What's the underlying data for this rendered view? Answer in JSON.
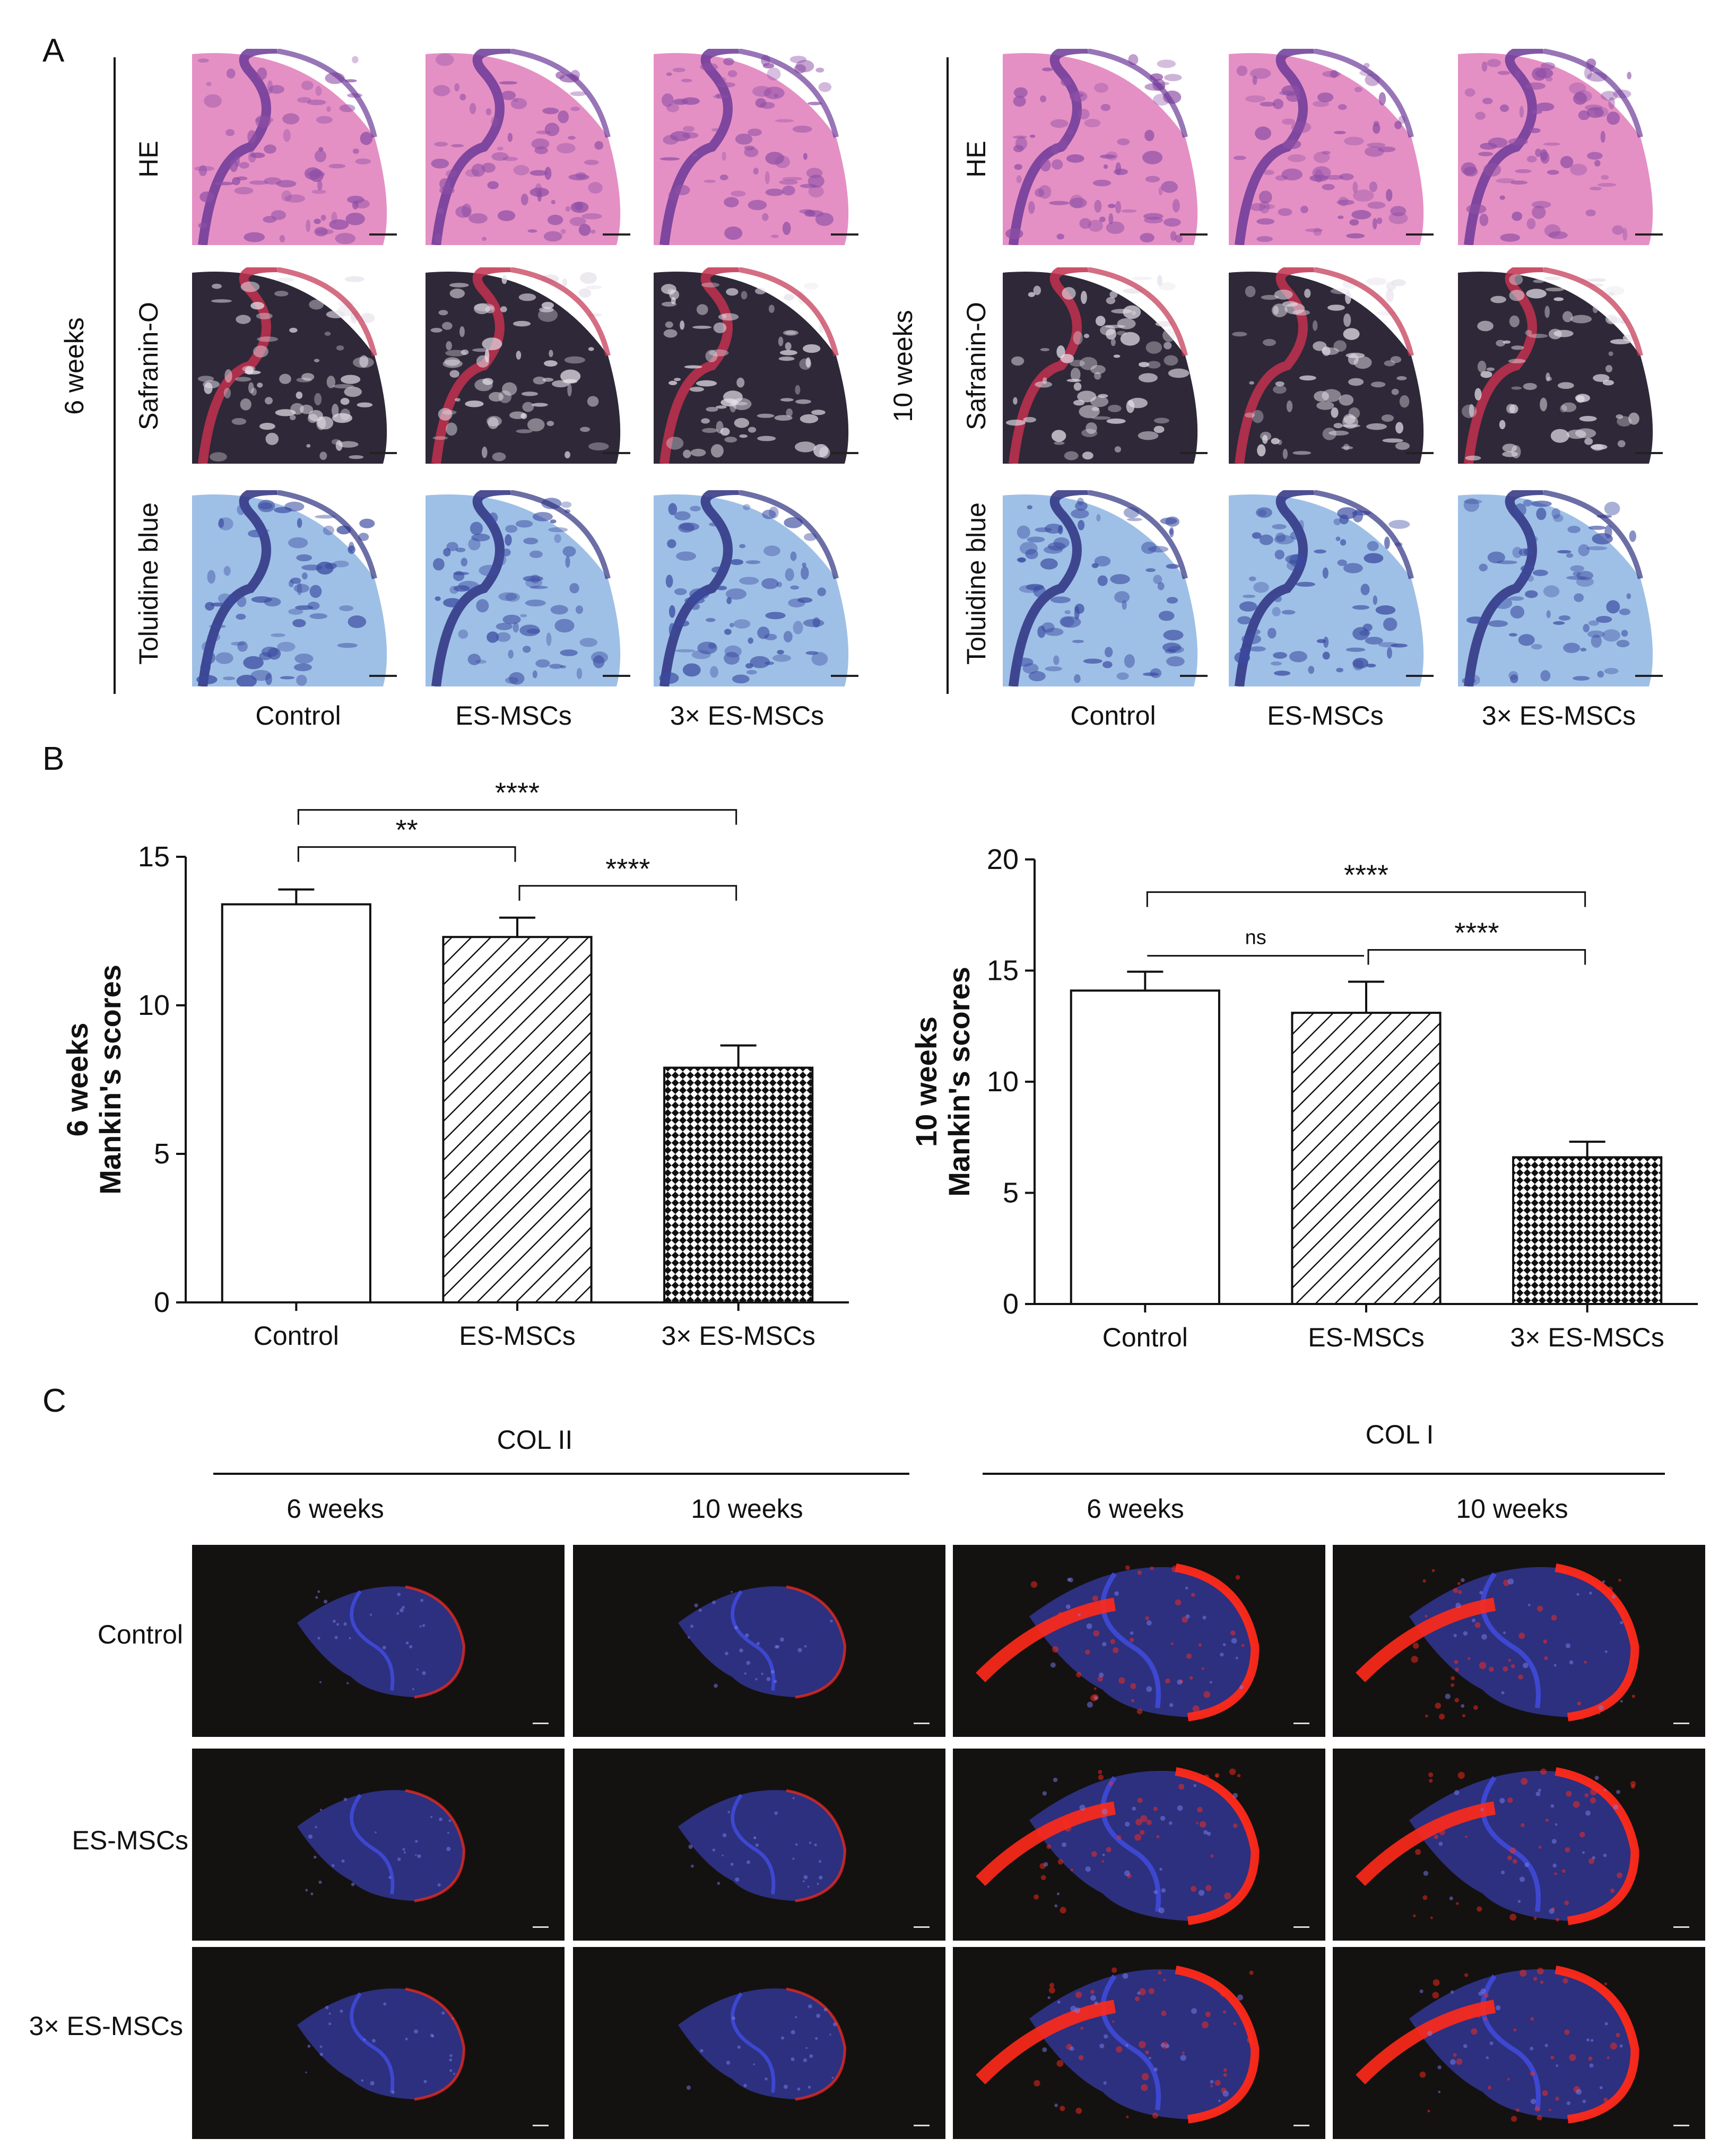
{
  "panels": {
    "a": "A",
    "b": "B",
    "c": "C"
  },
  "panelA": {
    "time_labels": [
      "6 weeks",
      "10 weeks"
    ],
    "stains": [
      "HE",
      "Safranin-O",
      "Toluidine blue"
    ],
    "groups": [
      "Control",
      "ES-MSCs",
      "3× ES-MSCs"
    ]
  },
  "panelC": {
    "markers": [
      "COL II",
      "COL I"
    ],
    "times": [
      "6 weeks",
      "10 weeks",
      "6 weeks",
      "10 weeks"
    ],
    "rows": [
      "Control",
      "ES-MSCs",
      "3× ES-MSCs"
    ]
  },
  "colors": {
    "he_bg": "#e590c4",
    "he_tissue": "#8e4fa6",
    "saf_bg": "#2e2838",
    "saf_red": "#c2304f",
    "tol_bg": "#9fc0e6",
    "tol_dark": "#3a4aa0",
    "fluor_bg": "#141111",
    "fluor_red": "#ff2a1a",
    "fluor_blue": "#3f4ad8"
  },
  "chart_data": [
    {
      "type": "bar",
      "ylabel": [
        "6 weeks",
        "Mankin's scores"
      ],
      "categories": [
        "Control",
        "ES-MSCs",
        "3× ES-MSCs"
      ],
      "values": [
        13.4,
        12.3,
        7.9
      ],
      "errors": [
        0.5,
        0.65,
        0.75
      ],
      "patterns": [
        "open",
        "hatch",
        "checker"
      ],
      "ylim": [
        0,
        15
      ],
      "yticks": [
        0,
        5,
        10,
        15
      ],
      "significance": [
        {
          "from": 0,
          "to": 1,
          "label": "**"
        },
        {
          "from": 0,
          "to": 2,
          "label": "****"
        },
        {
          "from": 1,
          "to": 2,
          "label": "****"
        }
      ]
    },
    {
      "type": "bar",
      "ylabel": [
        "10 weeks",
        "Mankin's scores"
      ],
      "categories": [
        "Control",
        "ES-MSCs",
        "3× ES-MSCs"
      ],
      "values": [
        14.1,
        13.1,
        6.6
      ],
      "errors": [
        0.85,
        1.4,
        0.7
      ],
      "patterns": [
        "open",
        "hatch",
        "checker"
      ],
      "ylim": [
        0,
        20
      ],
      "yticks": [
        0,
        5,
        10,
        15,
        20
      ],
      "significance": [
        {
          "from": 0,
          "to": 2,
          "label": "****"
        },
        {
          "from": 1,
          "to": 2,
          "label": "****"
        },
        {
          "from": 0,
          "to": 1,
          "label": "ns"
        }
      ]
    }
  ]
}
